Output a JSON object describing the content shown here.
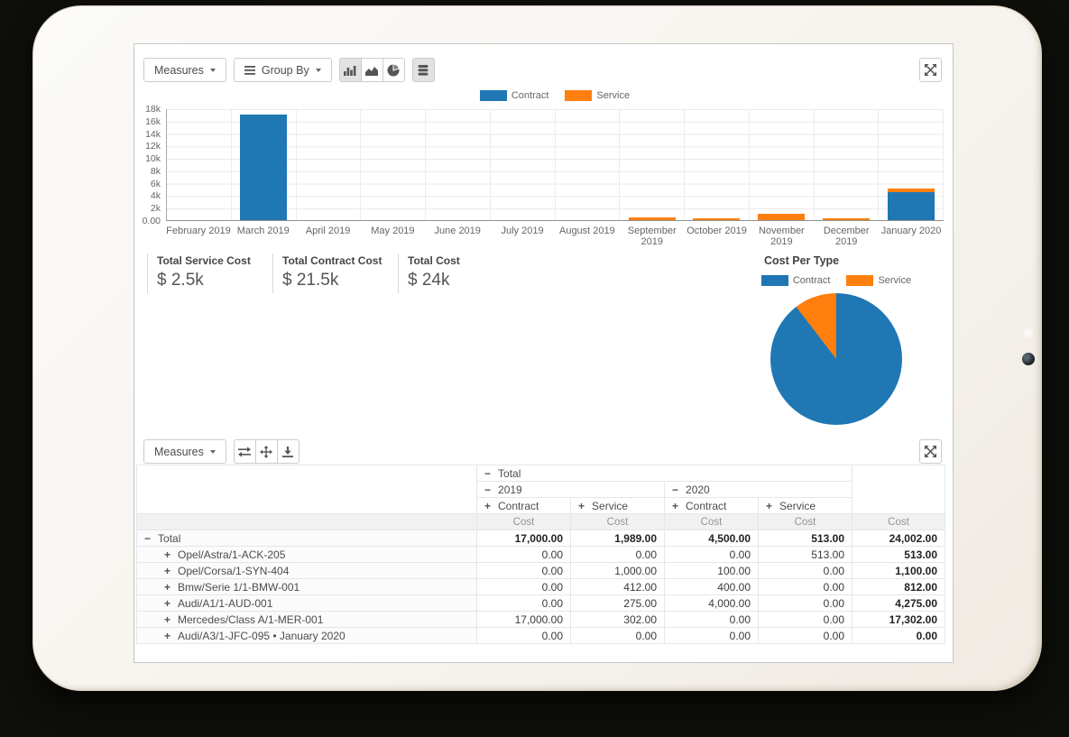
{
  "colors": {
    "contract": "#1f77b4",
    "service": "#ff7f0e",
    "accent_border": "#ccc"
  },
  "chart_toolbar": {
    "measures_label": "Measures",
    "group_by_label": "Group By",
    "view_buttons": [
      "bar-chart",
      "area-chart",
      "pie-chart",
      "data-sheet"
    ],
    "active_view": "bar-chart"
  },
  "kpis": [
    {
      "label": "Total Service Cost",
      "value": "$ 2.5k"
    },
    {
      "label": "Total Contract Cost",
      "value": "$ 21.5k"
    },
    {
      "label": "Total Cost",
      "value": "$ 24k"
    }
  ],
  "chart_data": [
    {
      "type": "bar",
      "stacked": true,
      "categories": [
        "February 2019",
        "March 2019",
        "April 2019",
        "May 2019",
        "June 2019",
        "July 2019",
        "August 2019",
        "September 2019",
        "October 2019",
        "November 2019",
        "December 2019",
        "January 2020"
      ],
      "series": [
        {
          "name": "Contract",
          "color": "#1f77b4",
          "values": [
            0,
            17000,
            0,
            0,
            0,
            0,
            0,
            0,
            0,
            0,
            0,
            4500
          ]
        },
        {
          "name": "Service",
          "color": "#ff7f0e",
          "values": [
            0,
            0,
            0,
            0,
            0,
            0,
            0,
            412,
            275,
            1000,
            302,
            513
          ]
        }
      ],
      "ylim": [
        0,
        18000
      ],
      "ytick_labels": [
        "0.00",
        "2k",
        "4k",
        "6k",
        "8k",
        "10k",
        "12k",
        "14k",
        "16k",
        "18k"
      ],
      "grid": true,
      "legend_position": "top",
      "xlabel": "",
      "ylabel": "",
      "title": ""
    },
    {
      "type": "pie",
      "title": "Cost Per Type",
      "labels": [
        "Contract",
        "Service"
      ],
      "values": [
        21500,
        2502
      ],
      "colors": [
        "#1f77b4",
        "#ff7f0e"
      ],
      "legend_position": "top"
    }
  ],
  "pivot": {
    "toolbar": {
      "measures_label": "Measures",
      "icons": [
        "flip-axis",
        "expand-all",
        "download"
      ]
    },
    "headers": {
      "total_label": "Total",
      "years": [
        "2019",
        "2020"
      ],
      "types": [
        "Contract",
        "Service",
        "Contract",
        "Service"
      ],
      "measure": "Cost"
    },
    "rows": [
      {
        "label": "Total",
        "icon": "minus",
        "indent": 0,
        "total": true,
        "values": [
          "17,000.00",
          "1,989.00",
          "4,500.00",
          "513.00",
          "24,002.00"
        ]
      },
      {
        "label": "Opel/Astra/1-ACK-205",
        "icon": "plus",
        "indent": 1,
        "values": [
          "0.00",
          "0.00",
          "0.00",
          "513.00",
          "513.00"
        ]
      },
      {
        "label": "Opel/Corsa/1-SYN-404",
        "icon": "plus",
        "indent": 1,
        "values": [
          "0.00",
          "1,000.00",
          "100.00",
          "0.00",
          "1,100.00"
        ]
      },
      {
        "label": "Bmw/Serie 1/1-BMW-001",
        "icon": "plus",
        "indent": 1,
        "values": [
          "0.00",
          "412.00",
          "400.00",
          "0.00",
          "812.00"
        ]
      },
      {
        "label": "Audi/A1/1-AUD-001",
        "icon": "plus",
        "indent": 1,
        "values": [
          "0.00",
          "275.00",
          "4,000.00",
          "0.00",
          "4,275.00"
        ]
      },
      {
        "label": "Mercedes/Class A/1-MER-001",
        "icon": "plus",
        "indent": 1,
        "values": [
          "17,000.00",
          "302.00",
          "0.00",
          "0.00",
          "17,302.00"
        ]
      },
      {
        "label": "Audi/A3/1-JFC-095 • January 2020",
        "icon": "plus",
        "indent": 1,
        "values": [
          "0.00",
          "0.00",
          "0.00",
          "0.00",
          "0.00"
        ]
      }
    ]
  }
}
